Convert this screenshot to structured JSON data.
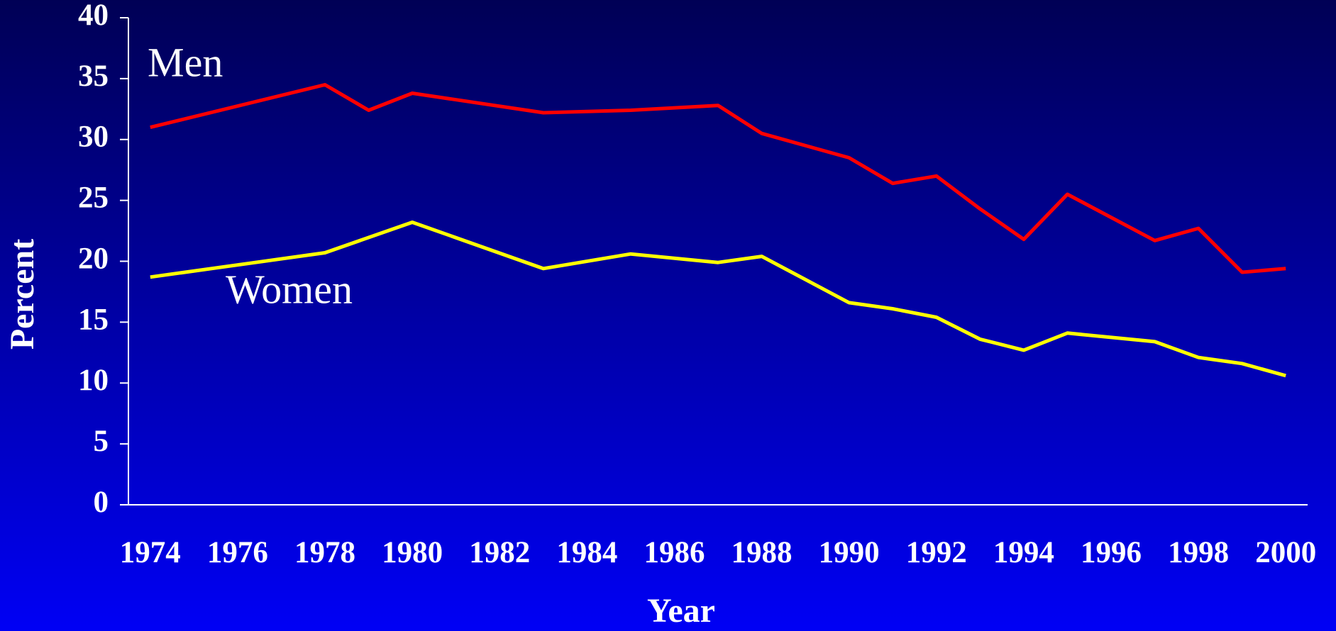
{
  "chart_data": {
    "type": "line",
    "xlabel": "Year",
    "ylabel": "Percent",
    "annotations": [
      "Men",
      "Women"
    ],
    "series": [
      {
        "name": "Men",
        "color": "#ff0000",
        "x": [
          1974,
          1978,
          1979,
          1980,
          1983,
          1985,
          1987,
          1988,
          1990,
          1991,
          1992,
          1993,
          1994,
          1995,
          1997,
          1998,
          1999,
          2000
        ],
        "values": [
          31.0,
          34.5,
          32.4,
          33.8,
          32.2,
          32.4,
          32.8,
          30.5,
          28.5,
          26.4,
          27.0,
          24.3,
          21.8,
          25.5,
          21.7,
          22.7,
          19.1,
          19.4
        ]
      },
      {
        "name": "Women",
        "color": "#ffff00",
        "x": [
          1974,
          1978,
          1980,
          1983,
          1985,
          1987,
          1988,
          1990,
          1991,
          1992,
          1993,
          1994,
          1995,
          1997,
          1998,
          1999,
          2000
        ],
        "values": [
          18.7,
          20.7,
          23.2,
          19.4,
          20.6,
          19.9,
          20.4,
          16.6,
          16.1,
          15.4,
          13.6,
          12.7,
          14.1,
          13.4,
          12.1,
          11.6,
          10.6
        ]
      }
    ],
    "xlim": [
      1973.5,
      2000.5
    ],
    "xticks": [
      1974,
      1976,
      1978,
      1980,
      1982,
      1984,
      1986,
      1988,
      1990,
      1992,
      1994,
      1996,
      1998,
      2000
    ],
    "ylim": [
      0,
      40
    ],
    "yticks": [
      0,
      5,
      10,
      15,
      20,
      25,
      30,
      35,
      40
    ],
    "grid": false
  }
}
